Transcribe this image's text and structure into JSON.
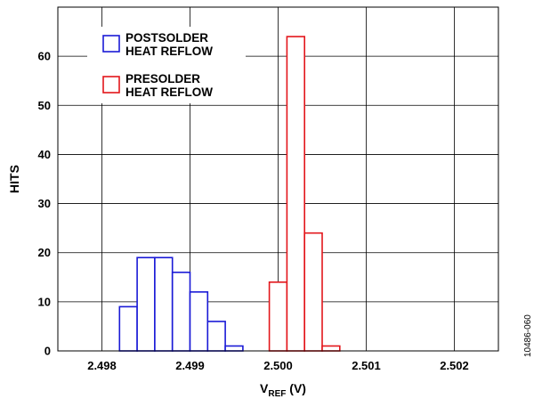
{
  "figure_id": "10486-060",
  "chart_data": {
    "type": "bar",
    "subtype": "histogram",
    "xlabel": {
      "main": "V",
      "sub": "REF",
      "unit": " (V)"
    },
    "ylabel": "HITS",
    "xlim": [
      2.4975,
      2.5025
    ],
    "ylim": [
      0,
      70
    ],
    "x_ticks": [
      "2.498",
      "2.499",
      "2.500",
      "2.501",
      "2.502"
    ],
    "y_ticks": [
      "0",
      "10",
      "20",
      "30",
      "40",
      "50",
      "60"
    ],
    "grid": true,
    "legend_position": "top-left",
    "bin_width": 0.0002,
    "series": [
      {
        "name": [
          "POSTSOLDER",
          "HEAT REFLOW"
        ],
        "color": "#1a1ad6",
        "bins": [
          {
            "x": 2.4982,
            "value": 9
          },
          {
            "x": 2.4984,
            "value": 19
          },
          {
            "x": 2.4986,
            "value": 19
          },
          {
            "x": 2.4988,
            "value": 16
          },
          {
            "x": 2.499,
            "value": 12
          },
          {
            "x": 2.4992,
            "value": 6
          },
          {
            "x": 2.4994,
            "value": 1
          }
        ]
      },
      {
        "name": [
          "PRESOLDER",
          "HEAT REFLOW"
        ],
        "color": "#e3161b",
        "bins": [
          {
            "x": 2.4999,
            "value": 14
          },
          {
            "x": 2.5001,
            "value": 64
          },
          {
            "x": 2.5003,
            "value": 24
          },
          {
            "x": 2.5005,
            "value": 1
          }
        ]
      }
    ]
  }
}
